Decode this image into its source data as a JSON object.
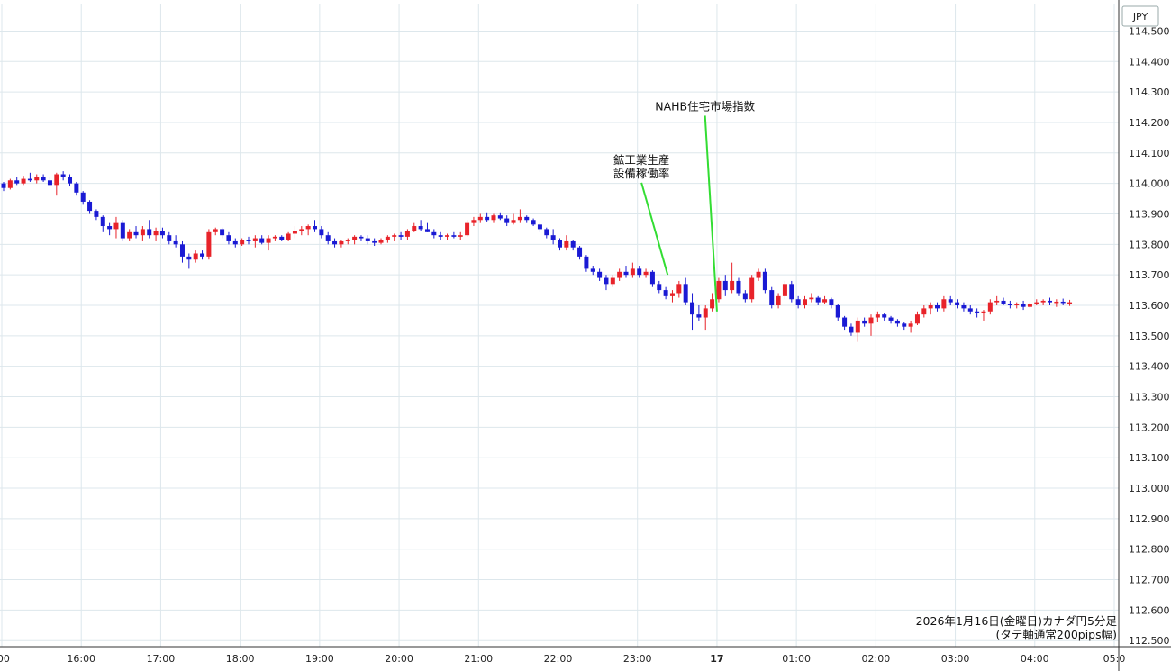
{
  "chart_data": {
    "type": "candlestick",
    "currency": "JPY",
    "y_axis": {
      "range": [
        112.48,
        114.59
      ],
      "ticks": [
        "114.500",
        "114.400",
        "114.300",
        "114.200",
        "114.100",
        "114.000",
        "113.900",
        "113.800",
        "113.700",
        "113.600",
        "113.500",
        "113.400",
        "113.300",
        "113.200",
        "113.100",
        "113.000",
        "112.900",
        "112.800",
        "112.700",
        "112.600",
        "112.500"
      ]
    },
    "x_axis": {
      "labels": [
        ":00",
        "16:00",
        "17:00",
        "18:00",
        "19:00",
        "20:00",
        "21:00",
        "22:00",
        "23:00",
        "17",
        "01:00",
        "02:00",
        "03:00",
        "04:00",
        "05:0"
      ],
      "label_hours": [
        15,
        16,
        17,
        18,
        19,
        20,
        21,
        22,
        23,
        24,
        25,
        26,
        27,
        28,
        29
      ],
      "range_hours": [
        15,
        29
      ]
    },
    "candles_start_hour": 15,
    "candle_minutes": 5,
    "candles": [
      [
        114.0,
        114.005,
        113.975,
        113.985
      ],
      [
        113.985,
        114.015,
        113.98,
        114.01
      ],
      [
        114.01,
        114.02,
        113.995,
        114.0
      ],
      [
        114.0,
        114.025,
        113.995,
        114.015
      ],
      [
        114.015,
        114.035,
        114.005,
        114.01
      ],
      [
        114.01,
        114.03,
        114.0,
        114.02
      ],
      [
        114.02,
        114.03,
        114.005,
        114.01
      ],
      [
        114.01,
        114.02,
        113.99,
        113.995
      ],
      [
        113.995,
        114.035,
        113.96,
        114.03
      ],
      [
        114.03,
        114.04,
        114.01,
        114.02
      ],
      [
        114.02,
        114.03,
        113.99,
        114.0
      ],
      [
        114.0,
        114.005,
        113.96,
        113.97
      ],
      [
        113.97,
        113.975,
        113.93,
        113.94
      ],
      [
        113.94,
        113.945,
        113.9,
        113.91
      ],
      [
        113.91,
        113.915,
        113.88,
        113.89
      ],
      [
        113.89,
        113.895,
        113.84,
        113.86
      ],
      [
        113.86,
        113.87,
        113.83,
        113.85
      ],
      [
        113.85,
        113.89,
        113.82,
        113.87
      ],
      [
        113.87,
        113.88,
        113.81,
        113.82
      ],
      [
        113.82,
        113.85,
        113.81,
        113.84
      ],
      [
        113.84,
        113.86,
        113.82,
        113.83
      ],
      [
        113.83,
        113.86,
        113.81,
        113.85
      ],
      [
        113.85,
        113.88,
        113.82,
        113.83
      ],
      [
        113.83,
        113.855,
        113.81,
        113.845
      ],
      [
        113.845,
        113.855,
        113.82,
        113.83
      ],
      [
        113.83,
        113.84,
        113.8,
        113.81
      ],
      [
        113.81,
        113.83,
        113.79,
        113.8
      ],
      [
        113.8,
        113.81,
        113.74,
        113.76
      ],
      [
        113.76,
        113.77,
        113.72,
        113.75
      ],
      [
        113.75,
        113.78,
        113.74,
        113.77
      ],
      [
        113.77,
        113.78,
        113.75,
        113.76
      ],
      [
        113.76,
        113.85,
        113.75,
        113.84
      ],
      [
        113.84,
        113.855,
        113.83,
        113.85
      ],
      [
        113.85,
        113.855,
        113.82,
        113.83
      ],
      [
        113.83,
        113.84,
        113.8,
        113.81
      ],
      [
        113.81,
        113.82,
        113.79,
        113.8
      ],
      [
        113.8,
        113.82,
        113.795,
        113.815
      ],
      [
        113.815,
        113.825,
        113.8,
        113.81
      ],
      [
        113.81,
        113.83,
        113.79,
        113.82
      ],
      [
        113.82,
        113.83,
        113.8,
        113.805
      ],
      [
        113.805,
        113.83,
        113.78,
        113.82
      ],
      [
        113.82,
        113.83,
        113.81,
        113.825
      ],
      [
        113.825,
        113.83,
        113.81,
        113.815
      ],
      [
        113.815,
        113.84,
        113.81,
        113.835
      ],
      [
        113.835,
        113.86,
        113.82,
        113.845
      ],
      [
        113.845,
        113.86,
        113.83,
        113.85
      ],
      [
        113.85,
        113.865,
        113.83,
        113.86
      ],
      [
        113.86,
        113.88,
        113.84,
        113.85
      ],
      [
        113.85,
        113.86,
        113.82,
        113.83
      ],
      [
        113.83,
        113.84,
        113.8,
        113.81
      ],
      [
        113.81,
        113.82,
        113.79,
        113.8
      ],
      [
        113.8,
        113.815,
        113.79,
        113.81
      ],
      [
        113.81,
        113.82,
        113.8,
        113.815
      ],
      [
        113.815,
        113.83,
        113.8,
        113.825
      ],
      [
        113.825,
        113.83,
        113.81,
        113.82
      ],
      [
        113.82,
        113.83,
        113.8,
        113.81
      ],
      [
        113.81,
        113.82,
        113.795,
        113.805
      ],
      [
        113.805,
        113.82,
        113.8,
        113.815
      ],
      [
        113.815,
        113.83,
        113.805,
        113.825
      ],
      [
        113.825,
        113.835,
        113.81,
        113.83
      ],
      [
        113.83,
        113.84,
        113.815,
        113.825
      ],
      [
        113.825,
        113.85,
        113.815,
        113.845
      ],
      [
        113.845,
        113.87,
        113.84,
        113.86
      ],
      [
        113.86,
        113.88,
        113.845,
        113.85
      ],
      [
        113.85,
        113.87,
        113.84,
        113.84
      ],
      [
        113.84,
        113.85,
        113.82,
        113.83
      ],
      [
        113.83,
        113.84,
        113.815,
        113.825
      ],
      [
        113.825,
        113.835,
        113.815,
        113.83
      ],
      [
        113.83,
        113.84,
        113.82,
        113.825
      ],
      [
        113.825,
        113.84,
        113.815,
        113.83
      ],
      [
        113.83,
        113.88,
        113.825,
        113.87
      ],
      [
        113.87,
        113.89,
        113.86,
        113.88
      ],
      [
        113.88,
        113.9,
        113.87,
        113.89
      ],
      [
        113.89,
        113.905,
        113.875,
        113.88
      ],
      [
        113.88,
        113.9,
        113.87,
        113.895
      ],
      [
        113.895,
        113.905,
        113.88,
        113.885
      ],
      [
        113.885,
        113.895,
        113.86,
        113.87
      ],
      [
        113.87,
        113.9,
        113.865,
        113.88
      ],
      [
        113.88,
        113.915,
        113.87,
        113.89
      ],
      [
        113.89,
        113.895,
        113.87,
        113.88
      ],
      [
        113.88,
        113.885,
        113.86,
        113.865
      ],
      [
        113.865,
        113.87,
        113.84,
        113.85
      ],
      [
        113.85,
        113.855,
        113.82,
        113.83
      ],
      [
        113.83,
        113.85,
        113.8,
        113.815
      ],
      [
        113.815,
        113.82,
        113.78,
        113.79
      ],
      [
        113.79,
        113.83,
        113.78,
        113.81
      ],
      [
        113.81,
        113.815,
        113.78,
        113.79
      ],
      [
        113.79,
        113.795,
        113.75,
        113.76
      ],
      [
        113.76,
        113.765,
        113.71,
        113.72
      ],
      [
        113.72,
        113.73,
        113.7,
        113.71
      ],
      [
        113.71,
        113.72,
        113.68,
        113.69
      ],
      [
        113.69,
        113.7,
        113.65,
        113.67
      ],
      [
        113.67,
        113.7,
        113.66,
        113.69
      ],
      [
        113.69,
        113.72,
        113.68,
        113.71
      ],
      [
        113.71,
        113.73,
        113.69,
        113.7
      ],
      [
        113.7,
        113.74,
        113.69,
        113.72
      ],
      [
        113.72,
        113.73,
        113.69,
        113.7
      ],
      [
        113.7,
        113.72,
        113.69,
        113.71
      ],
      [
        113.71,
        113.715,
        113.66,
        113.67
      ],
      [
        113.67,
        113.68,
        113.64,
        113.65
      ],
      [
        113.65,
        113.66,
        113.62,
        113.63
      ],
      [
        113.63,
        113.65,
        113.61,
        113.64
      ],
      [
        113.64,
        113.68,
        113.625,
        113.67
      ],
      [
        113.67,
        113.69,
        113.6,
        113.61
      ],
      [
        113.61,
        113.64,
        113.52,
        113.57
      ],
      [
        113.57,
        113.6,
        113.55,
        113.56
      ],
      [
        113.56,
        113.6,
        113.52,
        113.59
      ],
      [
        113.59,
        113.64,
        113.58,
        113.62
      ],
      [
        113.62,
        113.69,
        113.61,
        113.68
      ],
      [
        113.68,
        113.7,
        113.63,
        113.65
      ],
      [
        113.65,
        113.74,
        113.64,
        113.68
      ],
      [
        113.68,
        113.69,
        113.63,
        113.64
      ],
      [
        113.64,
        113.65,
        113.61,
        113.62
      ],
      [
        113.62,
        113.7,
        113.61,
        113.69
      ],
      [
        113.69,
        113.72,
        113.68,
        113.71
      ],
      [
        113.71,
        113.72,
        113.64,
        113.65
      ],
      [
        113.65,
        113.66,
        113.59,
        113.6
      ],
      [
        113.6,
        113.64,
        113.59,
        113.63
      ],
      [
        113.63,
        113.68,
        113.62,
        113.67
      ],
      [
        113.67,
        113.68,
        113.61,
        113.62
      ],
      [
        113.62,
        113.63,
        113.59,
        113.6
      ],
      [
        113.6,
        113.63,
        113.59,
        113.62
      ],
      [
        113.62,
        113.64,
        113.61,
        113.625
      ],
      [
        113.625,
        113.63,
        113.6,
        113.61
      ],
      [
        113.61,
        113.63,
        113.605,
        113.62
      ],
      [
        113.62,
        113.625,
        113.59,
        113.6
      ],
      [
        113.6,
        113.605,
        113.55,
        113.56
      ],
      [
        113.56,
        113.565,
        113.52,
        113.53
      ],
      [
        113.53,
        113.54,
        113.5,
        113.51
      ],
      [
        113.51,
        113.56,
        113.48,
        113.55
      ],
      [
        113.55,
        113.56,
        113.53,
        113.54
      ],
      [
        113.54,
        113.57,
        113.5,
        113.56
      ],
      [
        113.56,
        113.58,
        113.545,
        113.57
      ],
      [
        113.57,
        113.575,
        113.55,
        113.56
      ],
      [
        113.56,
        113.565,
        113.54,
        113.55
      ],
      [
        113.55,
        113.555,
        113.53,
        113.54
      ],
      [
        113.54,
        113.545,
        113.52,
        113.53
      ],
      [
        113.53,
        113.55,
        113.51,
        113.54
      ],
      [
        113.54,
        113.58,
        113.535,
        113.57
      ],
      [
        113.57,
        113.6,
        113.56,
        113.59
      ],
      [
        113.59,
        113.61,
        113.57,
        113.6
      ],
      [
        113.6,
        113.61,
        113.58,
        113.59
      ],
      [
        113.59,
        113.63,
        113.58,
        113.62
      ],
      [
        113.62,
        113.63,
        113.6,
        113.61
      ],
      [
        113.61,
        113.62,
        113.59,
        113.6
      ],
      [
        113.6,
        113.61,
        113.58,
        113.59
      ],
      [
        113.59,
        113.6,
        113.57,
        113.58
      ],
      [
        113.58,
        113.59,
        113.56,
        113.575
      ],
      [
        113.575,
        113.585,
        113.55,
        113.58
      ],
      [
        113.58,
        113.62,
        113.57,
        113.61
      ],
      [
        113.61,
        113.63,
        113.6,
        113.615
      ],
      [
        113.615,
        113.625,
        113.6,
        113.605
      ],
      [
        113.605,
        113.615,
        113.59,
        113.6
      ],
      [
        113.6,
        113.61,
        113.59,
        113.605
      ],
      [
        113.605,
        113.615,
        113.585,
        113.595
      ],
      [
        113.595,
        113.61,
        113.59,
        113.605
      ],
      [
        113.605,
        113.62,
        113.6,
        113.61
      ],
      [
        113.61,
        113.62,
        113.6,
        113.615
      ],
      [
        113.615,
        113.625,
        113.6,
        113.61
      ],
      [
        113.61,
        113.62,
        113.595,
        113.612
      ],
      [
        113.612,
        113.622,
        113.6,
        113.608
      ],
      [
        113.608,
        113.618,
        113.598,
        113.61
      ]
    ],
    "up_color": "#e8232a",
    "down_color": "#1a1ad4",
    "annotations": [
      {
        "lines": [
          "鉱工業生産",
          "設備稼働率"
        ],
        "target_hour": 23.38,
        "target_price": 113.7,
        "label_hour": 23.05,
        "label_price": 114.02
      },
      {
        "lines": [
          "NAHB住宅市場指数"
        ],
        "target_hour": 24.0,
        "target_price": 113.58,
        "label_hour": 23.85,
        "label_price": 114.24
      }
    ],
    "annotation_line_color": "#33dd33",
    "footer": [
      "2026年1月16日(金曜日)カナダ円5分足",
      "(タテ軸通常200pips幅)"
    ],
    "grid": true
  }
}
